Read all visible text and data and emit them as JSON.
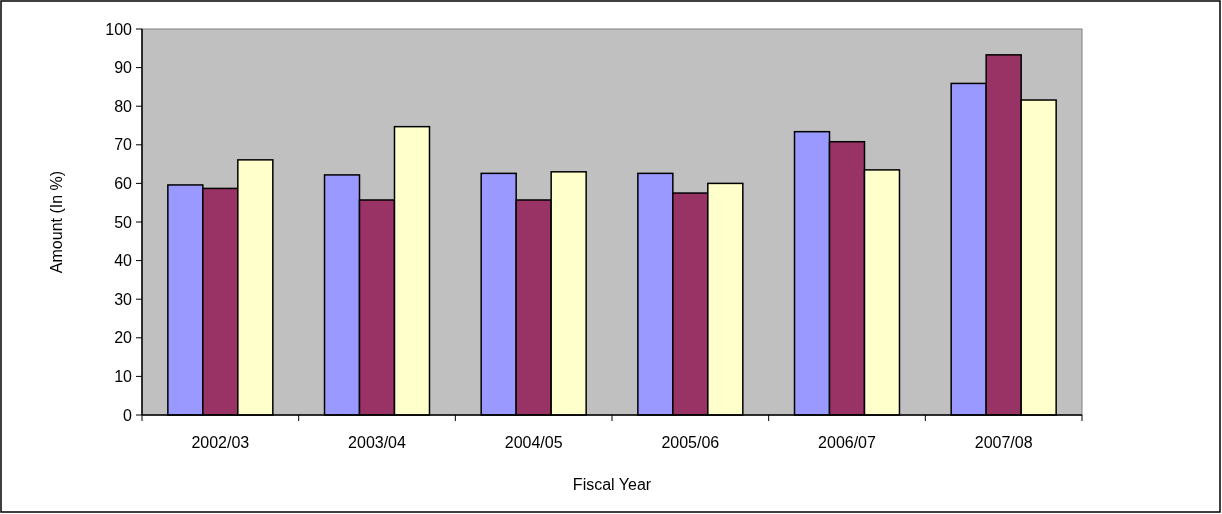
{
  "chart_data": {
    "type": "bar",
    "xlabel": "Fiscal Year",
    "ylabel": "Amount (In %)",
    "categories": [
      "2002/03",
      "2003/04",
      "2004/05",
      "2005/06",
      "2006/07",
      "2007/08"
    ],
    "series": [
      {
        "color": "#9999ff",
        "values": [
          59.6,
          62.2,
          62.6,
          62.6,
          73.4,
          85.9
        ]
      },
      {
        "color": "#993366",
        "values": [
          58.7,
          55.7,
          55.7,
          57.5,
          70.8,
          93.3
        ]
      },
      {
        "color": "#ffffcc",
        "values": [
          66.1,
          74.7,
          63.0,
          60.0,
          63.5,
          81.6
        ]
      }
    ],
    "ylim": [
      0,
      100
    ],
    "yticks": [
      0,
      10,
      20,
      30,
      40,
      50,
      60,
      70,
      80,
      90,
      100
    ],
    "grid": false
  }
}
